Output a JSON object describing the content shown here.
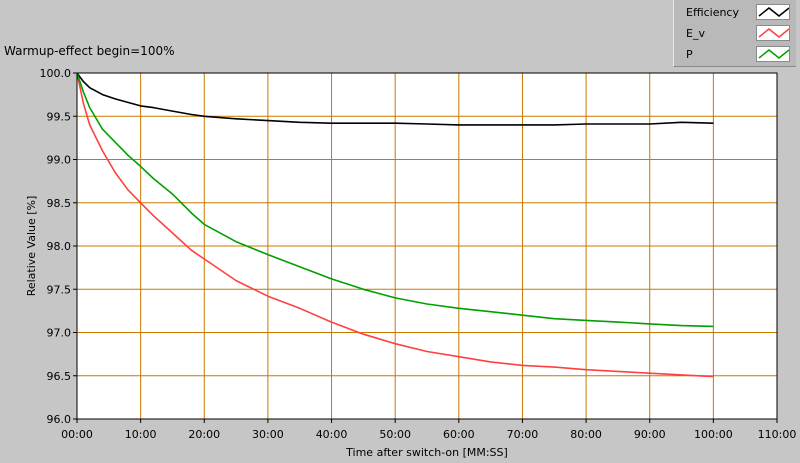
{
  "title": "Warmup-effect begin=100%",
  "legend": {
    "items": [
      {
        "name": "Efficiency",
        "color": "#000000"
      },
      {
        "name": "E_v",
        "color": "#ff4040"
      },
      {
        "name": "P",
        "color": "#00a000"
      }
    ]
  },
  "chart_data": {
    "type": "line",
    "xlabel": "Time after switch-on [MM:SS]",
    "ylabel": "Relative Value [%]",
    "xlim": [
      0,
      110
    ],
    "ylim": [
      96.0,
      100.0
    ],
    "x_ticks": [
      0,
      10,
      20,
      30,
      40,
      50,
      60,
      70,
      80,
      90,
      100,
      110
    ],
    "x_tick_labels": [
      "00:00",
      "10:00",
      "20:00",
      "30:00",
      "40:00",
      "50:00",
      "60:00",
      "70:00",
      "80:00",
      "90:00",
      "100:00",
      "110:00"
    ],
    "y_ticks": [
      96.0,
      96.5,
      97.0,
      97.5,
      98.0,
      98.5,
      99.0,
      99.5,
      100.0
    ],
    "y_tick_labels": [
      "96.0",
      "96.5",
      "97.0",
      "97.5",
      "98.0",
      "98.5",
      "99.0",
      "99.5",
      "100.0"
    ],
    "grid": true,
    "grid_color": "#c87800",
    "plot_background": "#ffffff",
    "series": [
      {
        "name": "Efficiency",
        "color": "#000000",
        "x": [
          0,
          1,
          2,
          4,
          6,
          8,
          10,
          12,
          15,
          18,
          20,
          25,
          30,
          35,
          40,
          45,
          50,
          55,
          60,
          65,
          70,
          75,
          80,
          85,
          90,
          95,
          100
        ],
        "y": [
          100.0,
          99.9,
          99.83,
          99.75,
          99.7,
          99.66,
          99.62,
          99.6,
          99.56,
          99.52,
          99.5,
          99.47,
          99.45,
          99.43,
          99.42,
          99.42,
          99.42,
          99.41,
          99.4,
          99.4,
          99.4,
          99.4,
          99.41,
          99.41,
          99.41,
          99.43,
          99.42
        ]
      },
      {
        "name": "E_v",
        "color": "#ff4040",
        "x": [
          0,
          1,
          2,
          4,
          6,
          8,
          10,
          12,
          15,
          18,
          20,
          25,
          30,
          35,
          40,
          45,
          50,
          55,
          60,
          65,
          70,
          75,
          80,
          85,
          90,
          95,
          100
        ],
        "y": [
          100.0,
          99.65,
          99.4,
          99.1,
          98.85,
          98.65,
          98.5,
          98.35,
          98.15,
          97.95,
          97.85,
          97.6,
          97.42,
          97.28,
          97.12,
          96.98,
          96.87,
          96.78,
          96.72,
          96.66,
          96.62,
          96.6,
          96.57,
          96.55,
          96.53,
          96.51,
          96.49
        ]
      },
      {
        "name": "P",
        "color": "#00a000",
        "x": [
          0,
          1,
          2,
          4,
          6,
          8,
          10,
          12,
          15,
          18,
          20,
          25,
          30,
          35,
          40,
          45,
          50,
          55,
          60,
          65,
          70,
          75,
          80,
          85,
          90,
          95,
          100
        ],
        "y": [
          100.0,
          99.78,
          99.6,
          99.35,
          99.2,
          99.05,
          98.92,
          98.78,
          98.6,
          98.38,
          98.25,
          98.05,
          97.9,
          97.76,
          97.62,
          97.5,
          97.4,
          97.33,
          97.28,
          97.24,
          97.2,
          97.16,
          97.14,
          97.12,
          97.1,
          97.08,
          97.07
        ]
      }
    ]
  }
}
